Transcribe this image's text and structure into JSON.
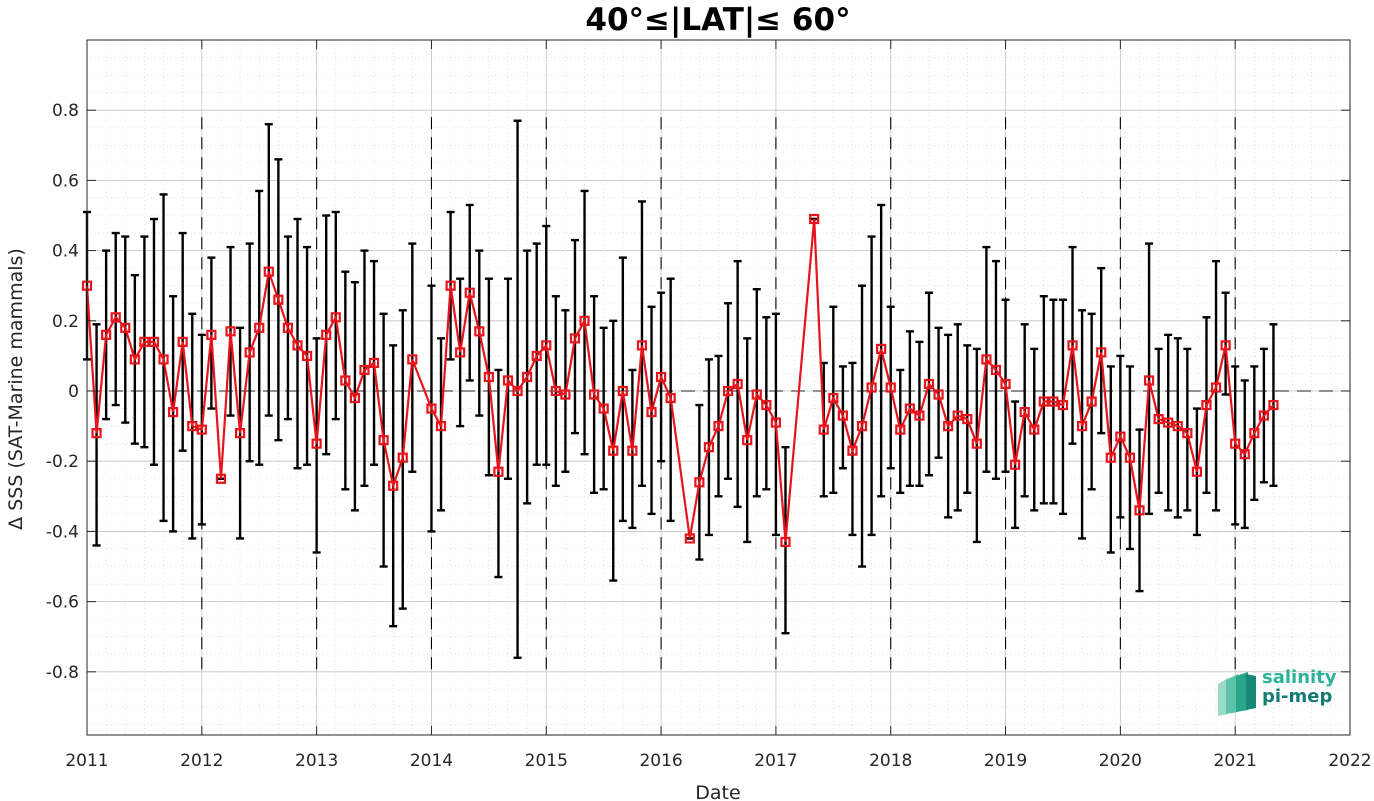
{
  "chart_data": {
    "type": "line",
    "title": "40°≤|LAT|≤ 60°",
    "xlabel": "Date",
    "ylabel": "Δ SSS (SAT-Marine mammals)",
    "xlim": [
      2011,
      2022
    ],
    "ylim": [
      -0.98,
      1.0
    ],
    "x_ticks": [
      "2011",
      "2012",
      "2013",
      "2014",
      "2015",
      "2016",
      "2017",
      "2018",
      "2019",
      "2020",
      "2021",
      "2022"
    ],
    "y_ticks": [
      -0.8,
      -0.6,
      -0.4,
      -0.2,
      0,
      0.2,
      0.4,
      0.6,
      0.8
    ],
    "y_tick_labels": [
      "-0.8",
      "-0.6",
      "-0.4",
      "-0.2",
      "0",
      "0.2",
      "0.4",
      "0.6",
      "0.8"
    ],
    "grid": true,
    "reference_line_y": 0,
    "year_dividers": [
      2012,
      2013,
      2014,
      2015,
      2016,
      2017,
      2018,
      2019,
      2020,
      2021
    ],
    "colors": {
      "series": "#e8141b",
      "error_bars": "#000000",
      "grid": "#c8c8c8"
    },
    "series": [
      {
        "marker": "square",
        "points": [
          {
            "date": "2011-01",
            "mean": 0.3,
            "low": 0.09,
            "high": 0.51
          },
          {
            "date": "2011-02",
            "mean": -0.12,
            "low": -0.44,
            "high": 0.19
          },
          {
            "date": "2011-03",
            "mean": 0.16,
            "low": -0.08,
            "high": 0.4
          },
          {
            "date": "2011-04",
            "mean": 0.21,
            "low": -0.04,
            "high": 0.45
          },
          {
            "date": "2011-05",
            "mean": 0.18,
            "low": -0.09,
            "high": 0.44
          },
          {
            "date": "2011-06",
            "mean": 0.09,
            "low": -0.15,
            "high": 0.33
          },
          {
            "date": "2011-07",
            "mean": 0.14,
            "low": -0.16,
            "high": 0.44
          },
          {
            "date": "2011-08",
            "mean": 0.14,
            "low": -0.21,
            "high": 0.49
          },
          {
            "date": "2011-09",
            "mean": 0.09,
            "low": -0.37,
            "high": 0.56
          },
          {
            "date": "2011-10",
            "mean": -0.06,
            "low": -0.4,
            "high": 0.27
          },
          {
            "date": "2011-11",
            "mean": 0.14,
            "low": -0.17,
            "high": 0.45
          },
          {
            "date": "2011-12",
            "mean": -0.1,
            "low": -0.42,
            "high": 0.22
          },
          {
            "date": "2012-01",
            "mean": -0.11,
            "low": -0.38,
            "high": 0.16
          },
          {
            "date": "2012-02",
            "mean": 0.16,
            "low": -0.05,
            "high": 0.38
          },
          {
            "date": "2012-03",
            "mean": -0.25,
            "low": -0.25,
            "high": -0.25
          },
          {
            "date": "2012-04",
            "mean": 0.17,
            "low": -0.07,
            "high": 0.41
          },
          {
            "date": "2012-05",
            "mean": -0.12,
            "low": -0.42,
            "high": 0.18
          },
          {
            "date": "2012-06",
            "mean": 0.11,
            "low": -0.2,
            "high": 0.42
          },
          {
            "date": "2012-07",
            "mean": 0.18,
            "low": -0.21,
            "high": 0.57
          },
          {
            "date": "2012-08",
            "mean": 0.34,
            "low": -0.07,
            "high": 0.76
          },
          {
            "date": "2012-09",
            "mean": 0.26,
            "low": -0.14,
            "high": 0.66
          },
          {
            "date": "2012-10",
            "mean": 0.18,
            "low": -0.08,
            "high": 0.44
          },
          {
            "date": "2012-11",
            "mean": 0.13,
            "low": -0.22,
            "high": 0.49
          },
          {
            "date": "2012-12",
            "mean": 0.1,
            "low": -0.21,
            "high": 0.41
          },
          {
            "date": "2013-01",
            "mean": -0.15,
            "low": -0.46,
            "high": 0.15
          },
          {
            "date": "2013-02",
            "mean": 0.16,
            "low": -0.18,
            "high": 0.5
          },
          {
            "date": "2013-03",
            "mean": 0.21,
            "low": -0.08,
            "high": 0.51
          },
          {
            "date": "2013-04",
            "mean": 0.03,
            "low": -0.28,
            "high": 0.34
          },
          {
            "date": "2013-05",
            "mean": -0.02,
            "low": -0.34,
            "high": 0.31
          },
          {
            "date": "2013-06",
            "mean": 0.06,
            "low": -0.27,
            "high": 0.4
          },
          {
            "date": "2013-07",
            "mean": 0.08,
            "low": -0.21,
            "high": 0.37
          },
          {
            "date": "2013-08",
            "mean": -0.14,
            "low": -0.5,
            "high": 0.22
          },
          {
            "date": "2013-09",
            "mean": -0.27,
            "low": -0.67,
            "high": 0.13
          },
          {
            "date": "2013-10",
            "mean": -0.19,
            "low": -0.62,
            "high": 0.23
          },
          {
            "date": "2013-11",
            "mean": 0.09,
            "low": -0.23,
            "high": 0.42
          },
          {
            "date": "2014-01",
            "mean": -0.05,
            "low": -0.4,
            "high": 0.3
          },
          {
            "date": "2014-02",
            "mean": -0.1,
            "low": -0.34,
            "high": 0.15
          },
          {
            "date": "2014-03",
            "mean": 0.3,
            "low": 0.09,
            "high": 0.51
          },
          {
            "date": "2014-04",
            "mean": 0.11,
            "low": -0.1,
            "high": 0.32
          },
          {
            "date": "2014-05",
            "mean": 0.28,
            "low": 0.03,
            "high": 0.53
          },
          {
            "date": "2014-06",
            "mean": 0.17,
            "low": -0.07,
            "high": 0.4
          },
          {
            "date": "2014-07",
            "mean": 0.04,
            "low": -0.24,
            "high": 0.32
          },
          {
            "date": "2014-08",
            "mean": -0.23,
            "low": -0.53,
            "high": 0.06
          },
          {
            "date": "2014-09",
            "mean": 0.03,
            "low": -0.25,
            "high": 0.32
          },
          {
            "date": "2014-10",
            "mean": 0.0,
            "low": -0.76,
            "high": 0.77
          },
          {
            "date": "2014-11",
            "mean": 0.04,
            "low": -0.32,
            "high": 0.4
          },
          {
            "date": "2014-12",
            "mean": 0.1,
            "low": -0.21,
            "high": 0.42
          },
          {
            "date": "2015-01",
            "mean": 0.13,
            "low": -0.21,
            "high": 0.47
          },
          {
            "date": "2015-02",
            "mean": 0.0,
            "low": -0.27,
            "high": 0.27
          },
          {
            "date": "2015-03",
            "mean": -0.01,
            "low": -0.23,
            "high": 0.23
          },
          {
            "date": "2015-04",
            "mean": 0.15,
            "low": -0.12,
            "high": 0.43
          },
          {
            "date": "2015-05",
            "mean": 0.2,
            "low": -0.18,
            "high": 0.57
          },
          {
            "date": "2015-06",
            "mean": -0.01,
            "low": -0.29,
            "high": 0.27
          },
          {
            "date": "2015-07",
            "mean": -0.05,
            "low": -0.28,
            "high": 0.18
          },
          {
            "date": "2015-08",
            "mean": -0.17,
            "low": -0.54,
            "high": 0.2
          },
          {
            "date": "2015-09",
            "mean": 0.0,
            "low": -0.37,
            "high": 0.38
          },
          {
            "date": "2015-10",
            "mean": -0.17,
            "low": -0.39,
            "high": 0.06
          },
          {
            "date": "2015-11",
            "mean": 0.13,
            "low": -0.27,
            "high": 0.54
          },
          {
            "date": "2015-12",
            "mean": -0.06,
            "low": -0.35,
            "high": 0.24
          },
          {
            "date": "2016-01",
            "mean": 0.04,
            "low": -0.2,
            "high": 0.28
          },
          {
            "date": "2016-02",
            "mean": -0.02,
            "low": -0.37,
            "high": 0.32
          },
          {
            "date": "2016-04",
            "mean": -0.42,
            "low": -0.42,
            "high": -0.42
          },
          {
            "date": "2016-05",
            "mean": -0.26,
            "low": -0.48,
            "high": -0.04
          },
          {
            "date": "2016-06",
            "mean": -0.16,
            "low": -0.41,
            "high": 0.09
          },
          {
            "date": "2016-07",
            "mean": -0.1,
            "low": -0.3,
            "high": 0.1
          },
          {
            "date": "2016-08",
            "mean": 0.0,
            "low": -0.25,
            "high": 0.25
          },
          {
            "date": "2016-09",
            "mean": 0.02,
            "low": -0.33,
            "high": 0.37
          },
          {
            "date": "2016-10",
            "mean": -0.14,
            "low": -0.43,
            "high": 0.15
          },
          {
            "date": "2016-11",
            "mean": -0.01,
            "low": -0.3,
            "high": 0.29
          },
          {
            "date": "2016-12",
            "mean": -0.04,
            "low": -0.28,
            "high": 0.21
          },
          {
            "date": "2017-01",
            "mean": -0.09,
            "low": -0.41,
            "high": 0.22
          },
          {
            "date": "2017-02",
            "mean": -0.43,
            "low": -0.69,
            "high": -0.16
          },
          {
            "date": "2017-05",
            "mean": 0.49,
            "low": 0.49,
            "high": 0.49
          },
          {
            "date": "2017-06",
            "mean": -0.11,
            "low": -0.3,
            "high": 0.08
          },
          {
            "date": "2017-07",
            "mean": -0.02,
            "low": -0.29,
            "high": 0.24
          },
          {
            "date": "2017-08",
            "mean": -0.07,
            "low": -0.22,
            "high": 0.07
          },
          {
            "date": "2017-09",
            "mean": -0.17,
            "low": -0.41,
            "high": 0.08
          },
          {
            "date": "2017-10",
            "mean": -0.1,
            "low": -0.5,
            "high": 0.3
          },
          {
            "date": "2017-11",
            "mean": 0.01,
            "low": -0.41,
            "high": 0.44
          },
          {
            "date": "2017-12",
            "mean": 0.12,
            "low": -0.3,
            "high": 0.53
          },
          {
            "date": "2018-01",
            "mean": 0.01,
            "low": -0.22,
            "high": 0.24
          },
          {
            "date": "2018-02",
            "mean": -0.11,
            "low": -0.29,
            "high": 0.06
          },
          {
            "date": "2018-03",
            "mean": -0.05,
            "low": -0.27,
            "high": 0.17
          },
          {
            "date": "2018-04",
            "mean": -0.07,
            "low": -0.27,
            "high": 0.14
          },
          {
            "date": "2018-05",
            "mean": 0.02,
            "low": -0.24,
            "high": 0.28
          },
          {
            "date": "2018-06",
            "mean": -0.01,
            "low": -0.19,
            "high": 0.18
          },
          {
            "date": "2018-07",
            "mean": -0.1,
            "low": -0.36,
            "high": 0.16
          },
          {
            "date": "2018-08",
            "mean": -0.07,
            "low": -0.34,
            "high": 0.19
          },
          {
            "date": "2018-09",
            "mean": -0.08,
            "low": -0.29,
            "high": 0.13
          },
          {
            "date": "2018-10",
            "mean": -0.15,
            "low": -0.43,
            "high": 0.12
          },
          {
            "date": "2018-11",
            "mean": 0.09,
            "low": -0.23,
            "high": 0.41
          },
          {
            "date": "2018-12",
            "mean": 0.06,
            "low": -0.25,
            "high": 0.37
          },
          {
            "date": "2019-01",
            "mean": 0.02,
            "low": -0.23,
            "high": 0.26
          },
          {
            "date": "2019-02",
            "mean": -0.21,
            "low": -0.39,
            "high": -0.03
          },
          {
            "date": "2019-03",
            "mean": -0.06,
            "low": -0.3,
            "high": 0.19
          },
          {
            "date": "2019-04",
            "mean": -0.11,
            "low": -0.34,
            "high": 0.12
          },
          {
            "date": "2019-05",
            "mean": -0.03,
            "low": -0.32,
            "high": 0.27
          },
          {
            "date": "2019-06",
            "mean": -0.03,
            "low": -0.32,
            "high": 0.26
          },
          {
            "date": "2019-07",
            "mean": -0.04,
            "low": -0.35,
            "high": 0.26
          },
          {
            "date": "2019-08",
            "mean": 0.13,
            "low": -0.15,
            "high": 0.41
          },
          {
            "date": "2019-09",
            "mean": -0.1,
            "low": -0.42,
            "high": 0.23
          },
          {
            "date": "2019-10",
            "mean": -0.03,
            "low": -0.28,
            "high": 0.22
          },
          {
            "date": "2019-11",
            "mean": 0.11,
            "low": -0.12,
            "high": 0.35
          },
          {
            "date": "2019-12",
            "mean": -0.19,
            "low": -0.46,
            "high": 0.07
          },
          {
            "date": "2020-01",
            "mean": -0.13,
            "low": -0.36,
            "high": 0.1
          },
          {
            "date": "2020-02",
            "mean": -0.19,
            "low": -0.45,
            "high": 0.07
          },
          {
            "date": "2020-03",
            "mean": -0.34,
            "low": -0.57,
            "high": -0.11
          },
          {
            "date": "2020-04",
            "mean": 0.03,
            "low": -0.35,
            "high": 0.42
          },
          {
            "date": "2020-05",
            "mean": -0.08,
            "low": -0.29,
            "high": 0.12
          },
          {
            "date": "2020-06",
            "mean": -0.09,
            "low": -0.34,
            "high": 0.16
          },
          {
            "date": "2020-07",
            "mean": -0.1,
            "low": -0.36,
            "high": 0.15
          },
          {
            "date": "2020-08",
            "mean": -0.12,
            "low": -0.34,
            "high": 0.12
          },
          {
            "date": "2020-09",
            "mean": -0.23,
            "low": -0.41,
            "high": -0.05
          },
          {
            "date": "2020-10",
            "mean": -0.04,
            "low": -0.29,
            "high": 0.21
          },
          {
            "date": "2020-11",
            "mean": 0.01,
            "low": -0.34,
            "high": 0.37
          },
          {
            "date": "2020-12",
            "mean": 0.13,
            "low": -0.01,
            "high": 0.28
          },
          {
            "date": "2021-01",
            "mean": -0.15,
            "low": -0.38,
            "high": 0.07
          },
          {
            "date": "2021-02",
            "mean": -0.18,
            "low": -0.39,
            "high": 0.03
          },
          {
            "date": "2021-03",
            "mean": -0.12,
            "low": -0.31,
            "high": 0.07
          },
          {
            "date": "2021-04",
            "mean": -0.07,
            "low": -0.26,
            "high": 0.12
          },
          {
            "date": "2021-05",
            "mean": -0.04,
            "low": -0.27,
            "high": 0.19
          }
        ]
      }
    ]
  },
  "logo": {
    "line1": "salinity",
    "line2": "pi-mep"
  }
}
